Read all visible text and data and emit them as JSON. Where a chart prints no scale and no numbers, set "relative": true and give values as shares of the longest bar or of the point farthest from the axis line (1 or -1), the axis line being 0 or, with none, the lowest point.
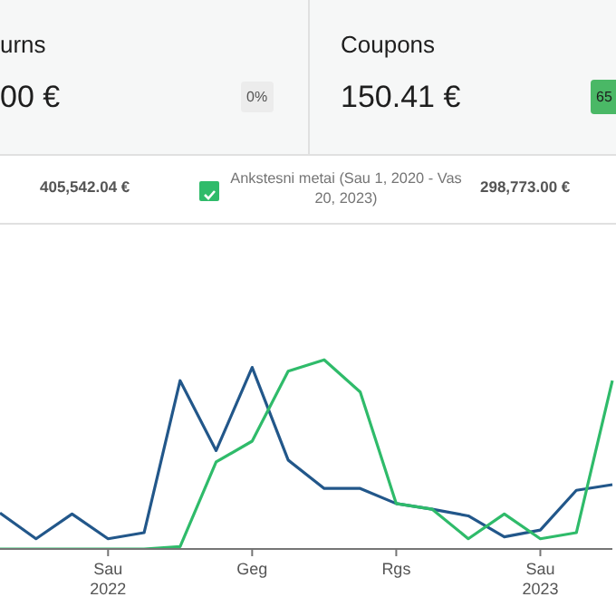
{
  "chart_data": {
    "type": "line",
    "relative": true,
    "legend": "top",
    "marker": "none",
    "categories": [
      null,
      null,
      null,
      "Sau 2022",
      null,
      null,
      null,
      "Geg",
      null,
      null,
      null,
      "Rgs",
      null,
      null,
      null,
      "Sau 2023",
      null,
      null
    ],
    "series": [
      {
        "color": "#22578a",
        "values": [
          0.19,
          0.054,
          0.185,
          0.054,
          0.086,
          0.89,
          0.52,
          0.96,
          0.47,
          0.32,
          0.32,
          0.24,
          0.21,
          0.175,
          0.064,
          0.1,
          0.31,
          0.34
        ]
      },
      {
        "name": "Ankstesni metai (Sau 1, 2020 - Vas 20, 2023)",
        "color": "#2fbb6a",
        "values": [
          0,
          0,
          0,
          0,
          0,
          0.013,
          0.46,
          0.57,
          0.94,
          1,
          0.83,
          0.24,
          0.21,
          0.054,
          0.185,
          0.054,
          0.086,
          0.89
        ]
      }
    ],
    "annotations": [
      "urns",
      "00 €",
      "0%",
      "Coupons",
      "150.41 €",
      "65",
      "405,542.04 €",
      "298,773.00 €"
    ]
  }
}
